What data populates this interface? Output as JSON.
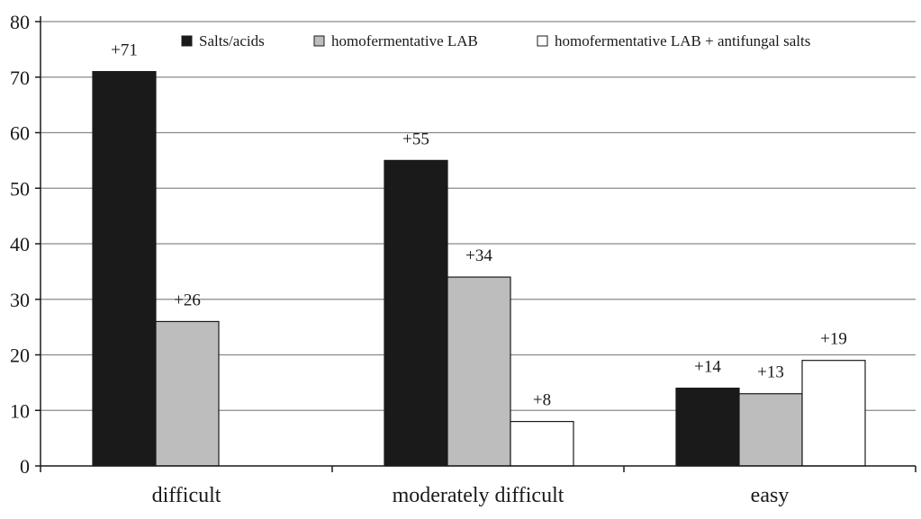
{
  "chart_data": {
    "type": "bar",
    "categories": [
      "difficult",
      "moderately difficult",
      "easy"
    ],
    "series": [
      {
        "name": "Salts/acids",
        "values": [
          71,
          55,
          14
        ],
        "labels": [
          "+71",
          "+55",
          "+14"
        ],
        "color": "#1a1a1a"
      },
      {
        "name": "homofermentative LAB",
        "values": [
          26,
          34,
          13
        ],
        "labels": [
          "+26",
          "+34",
          "+13"
        ],
        "color": "#bdbdbd"
      },
      {
        "name": "homofermentative LAB + antifungal salts",
        "values": [
          null,
          8,
          19
        ],
        "labels": [
          "",
          "+8",
          "+19"
        ],
        "color": "#ffffff"
      }
    ],
    "yticks": [
      0,
      10,
      20,
      30,
      40,
      50,
      60,
      70,
      80
    ],
    "ylim": [
      0,
      80
    ],
    "title": "",
    "xlabel": "",
    "ylabel": "",
    "grid": true,
    "legend_position": "top-right"
  }
}
